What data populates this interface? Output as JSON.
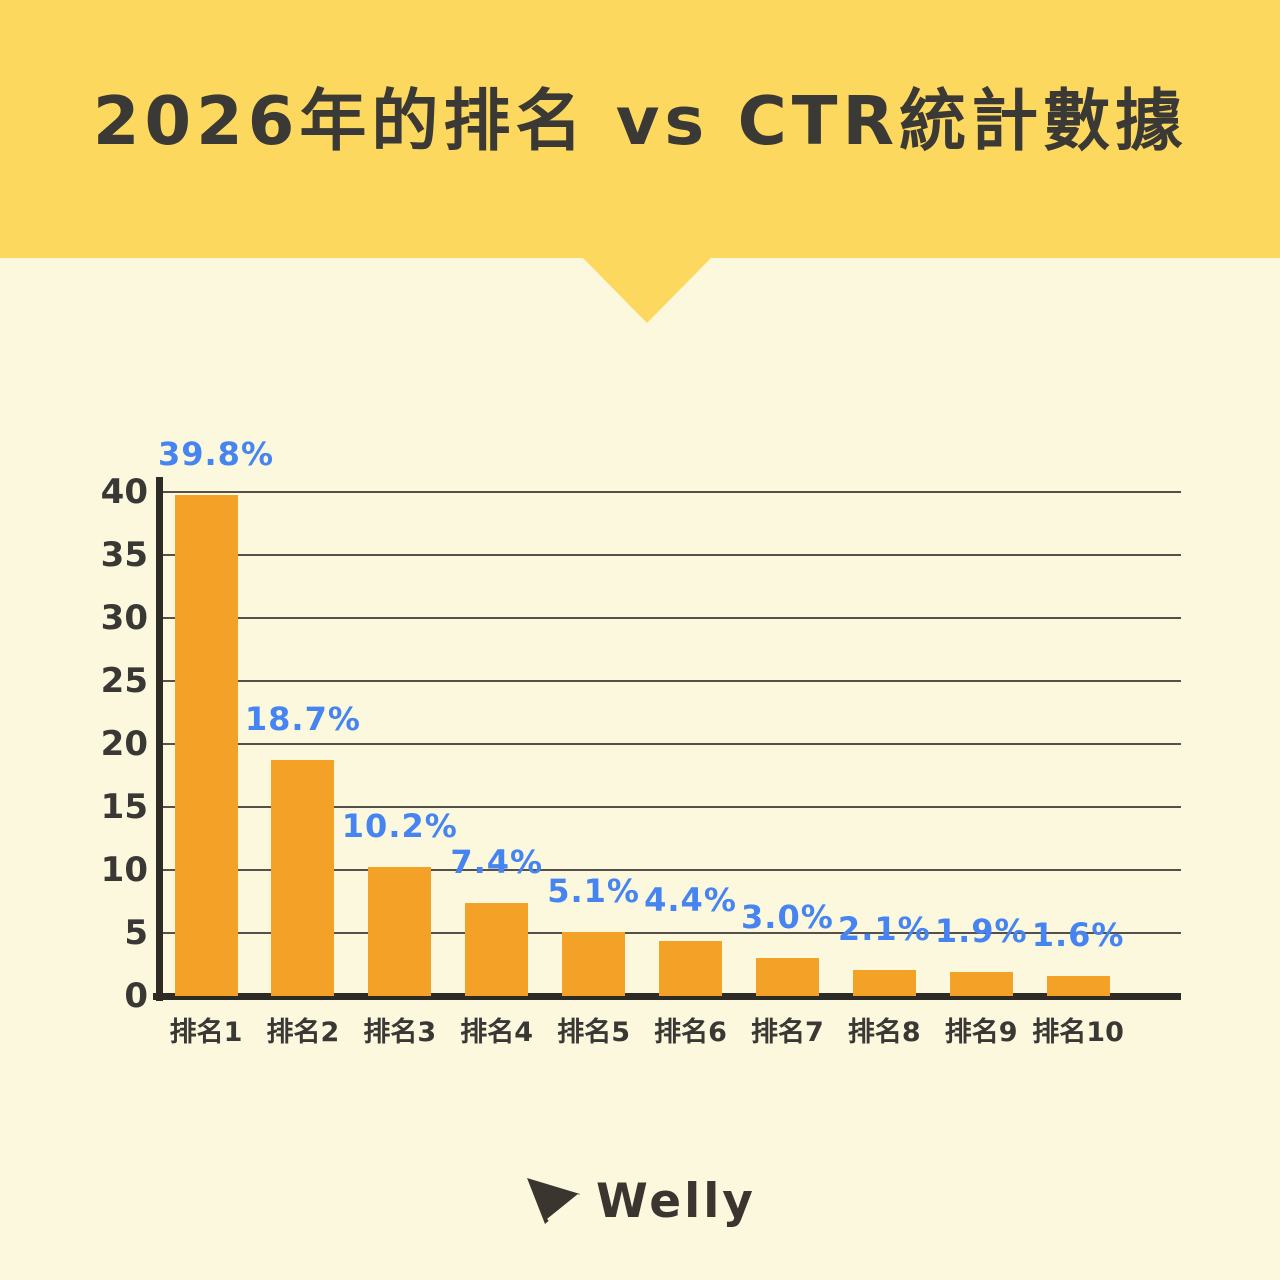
{
  "header": {
    "title": "2026年的排名 vs CTR統計數據"
  },
  "footer": {
    "brand": "Welly",
    "logo_icon": "paper-plane-icon"
  },
  "colors": {
    "banner_yellow": "#FCD85E",
    "background_cream": "#FCF8DE",
    "bar_orange": "#F3A127",
    "value_label_blue": "#4584F1",
    "axis_dark": "#2E2A26",
    "text_dark": "#3A3835",
    "gridline_gray": "#55514A"
  },
  "chart_data": {
    "type": "bar",
    "title": "2026年的排名 vs CTR統計數據",
    "categories": [
      "排名1",
      "排名2",
      "排名3",
      "排名4",
      "排名5",
      "排名6",
      "排名7",
      "排名8",
      "排名9",
      "排名10"
    ],
    "values": [
      39.8,
      18.7,
      10.2,
      7.4,
      5.1,
      4.4,
      3.0,
      2.1,
      1.9,
      1.6
    ],
    "value_labels": [
      "39.8%",
      "18.7%",
      "10.2%",
      "7.4%",
      "5.1%",
      "4.4%",
      "3.0%",
      "2.1%",
      "1.9%",
      "1.6%"
    ],
    "xlabel": "",
    "ylabel": "",
    "ylim": [
      0,
      40
    ],
    "yticks": [
      0,
      5,
      10,
      15,
      20,
      25,
      30,
      35,
      40
    ],
    "grid": true,
    "legend_position": "none"
  }
}
